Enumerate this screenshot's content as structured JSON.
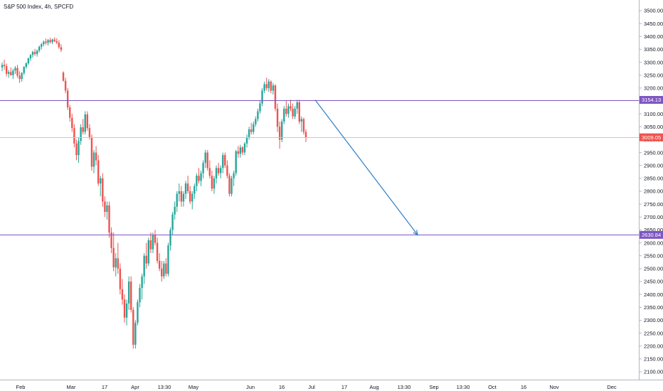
{
  "header": {
    "title": "S&P 500 Index, 4h, SPCFD"
  },
  "colors": {
    "up": "#26a69a",
    "down": "#ef5350",
    "hline": "#7e57c2",
    "price_line": "#f7b7b3",
    "price_tag": "#f0544f",
    "hline_tag": "#7e57c2",
    "arrow": "#2f7ec7",
    "axis_text": "#131722",
    "axis_line": "#b2b5be"
  },
  "chart_data": {
    "type": "candlestick",
    "symbol": "S&P 500 Index",
    "interval": "4h",
    "source": "SPCFD",
    "y_axis": {
      "ticks": [
        3500,
        3450,
        3400,
        3350,
        3300,
        3250,
        3200,
        3150,
        3100,
        3050,
        3000,
        2950,
        2900,
        2850,
        2800,
        2750,
        2700,
        2650,
        2600,
        2550,
        2500,
        2450,
        2400,
        2350,
        2300,
        2250,
        2200,
        2150,
        2100
      ],
      "tick_labels": [
        "3500.00",
        "3450.00",
        "3400.00",
        "3350.00",
        "3300.00",
        "3250.00",
        "3200.00",
        "3150.00",
        "3100.00",
        "3050.00",
        "3000.00",
        "2950.00",
        "2900.00",
        "2850.00",
        "2800.00",
        "2750.00",
        "2700.00",
        "2650.00",
        "2600.00",
        "2550.00",
        "2500.00",
        "2450.00",
        "2400.00",
        "2350.00",
        "2300.00",
        "2250.00",
        "2200.00",
        "2150.00",
        "2100.00"
      ],
      "range": [
        2077,
        3523
      ]
    },
    "x_axis": {
      "tick_labels": [
        "Feb",
        "Mar",
        "17",
        "Apr",
        "13:30",
        "May",
        "Jun",
        "16",
        "Jul",
        "17",
        "Aug",
        "13:30",
        "Sep",
        "13:30",
        "Oct",
        "16",
        "Nov",
        "Dec"
      ]
    },
    "horizontal_lines": [
      {
        "price": 3154.13,
        "label": "3154.13",
        "kind": "level"
      },
      {
        "price": 3009.05,
        "label": "3009.05",
        "kind": "last_price"
      },
      {
        "price": 2630.84,
        "label": "2630.84",
        "kind": "level"
      }
    ],
    "projection_arrow": {
      "from": {
        "date": "2020-06-29",
        "price": 3154
      },
      "to": {
        "date": "2020-08-27",
        "price": 2630.84
      }
    },
    "ohlc": [
      [
        3280,
        3300,
        3265,
        3290
      ],
      [
        3290,
        3310,
        3270,
        3285
      ],
      [
        3285,
        3295,
        3245,
        3255
      ],
      [
        3255,
        3270,
        3240,
        3262
      ],
      [
        3262,
        3280,
        3248,
        3250
      ],
      [
        3250,
        3275,
        3235,
        3268
      ],
      [
        3268,
        3285,
        3255,
        3278
      ],
      [
        3278,
        3290,
        3240,
        3248
      ],
      [
        3248,
        3265,
        3220,
        3235
      ],
      [
        3235,
        3262,
        3225,
        3258
      ],
      [
        3258,
        3285,
        3250,
        3282
      ],
      [
        3282,
        3300,
        3275,
        3296
      ],
      [
        3296,
        3318,
        3290,
        3315
      ],
      [
        3315,
        3332,
        3305,
        3328
      ],
      [
        3328,
        3345,
        3318,
        3340
      ],
      [
        3340,
        3352,
        3325,
        3332
      ],
      [
        3332,
        3350,
        3322,
        3345
      ],
      [
        3345,
        3365,
        3338,
        3360
      ],
      [
        3360,
        3375,
        3350,
        3370
      ],
      [
        3370,
        3385,
        3362,
        3380
      ],
      [
        3380,
        3392,
        3368,
        3375
      ],
      [
        3375,
        3390,
        3365,
        3386
      ],
      [
        3386,
        3395,
        3372,
        3378
      ],
      [
        3378,
        3392,
        3370,
        3388
      ],
      [
        3388,
        3397,
        3378,
        3382
      ],
      [
        3382,
        3393,
        3370,
        3376
      ],
      [
        3376,
        3386,
        3352,
        3358
      ],
      [
        3358,
        3370,
        3340,
        3348
      ],
      [
        3260,
        3265,
        3225,
        3228
      ],
      [
        3228,
        3240,
        3180,
        3190
      ],
      [
        3190,
        3200,
        3115,
        3125
      ],
      [
        3125,
        3135,
        3070,
        3085
      ],
      [
        3085,
        3100,
        3030,
        3045
      ],
      [
        3045,
        3060,
        2970,
        2985
      ],
      [
        2985,
        3000,
        2920,
        2940
      ],
      [
        2940,
        3010,
        2910,
        2995
      ],
      [
        2995,
        3060,
        2980,
        3048
      ],
      [
        3048,
        3080,
        3020,
        3030
      ],
      [
        3030,
        3110,
        3020,
        3098
      ],
      [
        3098,
        3110,
        3035,
        3045
      ],
      [
        3045,
        3060,
        3000,
        3010
      ],
      [
        3010,
        3020,
        2880,
        2895
      ],
      [
        2895,
        2960,
        2870,
        2950
      ],
      [
        2950,
        2975,
        2900,
        2920
      ],
      [
        2920,
        2940,
        2820,
        2830
      ],
      [
        2830,
        2860,
        2780,
        2850
      ],
      [
        2850,
        2870,
        2740,
        2760
      ],
      [
        2760,
        2780,
        2700,
        2720
      ],
      [
        2720,
        2760,
        2690,
        2745
      ],
      [
        2745,
        2760,
        2620,
        2640
      ],
      [
        2640,
        2660,
        2560,
        2580
      ],
      [
        2580,
        2640,
        2490,
        2505
      ],
      [
        2505,
        2560,
        2470,
        2540
      ],
      [
        2540,
        2600,
        2480,
        2500
      ],
      [
        2500,
        2520,
        2400,
        2420
      ],
      [
        2420,
        2460,
        2360,
        2380
      ],
      [
        2380,
        2400,
        2290,
        2310
      ],
      [
        2310,
        2380,
        2280,
        2365
      ],
      [
        2365,
        2470,
        2340,
        2450
      ],
      [
        2450,
        2470,
        2330,
        2340
      ],
      [
        2340,
        2350,
        2190,
        2205
      ],
      [
        2205,
        2300,
        2190,
        2290
      ],
      [
        2290,
        2380,
        2280,
        2370
      ],
      [
        2370,
        2440,
        2350,
        2425
      ],
      [
        2425,
        2480,
        2380,
        2470
      ],
      [
        2470,
        2560,
        2440,
        2550
      ],
      [
        2550,
        2600,
        2500,
        2520
      ],
      [
        2520,
        2620,
        2510,
        2610
      ],
      [
        2610,
        2640,
        2560,
        2575
      ],
      [
        2575,
        2640,
        2560,
        2630
      ],
      [
        2630,
        2650,
        2590,
        2600
      ],
      [
        2600,
        2620,
        2520,
        2530
      ],
      [
        2530,
        2560,
        2490,
        2500
      ],
      [
        2500,
        2530,
        2450,
        2470
      ],
      [
        2470,
        2530,
        2460,
        2520
      ],
      [
        2520,
        2540,
        2470,
        2480
      ],
      [
        2480,
        2600,
        2470,
        2590
      ],
      [
        2590,
        2660,
        2570,
        2650
      ],
      [
        2650,
        2720,
        2630,
        2710
      ],
      [
        2710,
        2760,
        2690,
        2740
      ],
      [
        2740,
        2800,
        2720,
        2790
      ],
      [
        2790,
        2830,
        2760,
        2800
      ],
      [
        2800,
        2820,
        2740,
        2760
      ],
      [
        2760,
        2800,
        2740,
        2790
      ],
      [
        2790,
        2840,
        2770,
        2830
      ],
      [
        2830,
        2860,
        2790,
        2800
      ],
      [
        2800,
        2820,
        2750,
        2760
      ],
      [
        2760,
        2800,
        2730,
        2790
      ],
      [
        2790,
        2830,
        2770,
        2820
      ],
      [
        2820,
        2870,
        2800,
        2860
      ],
      [
        2860,
        2890,
        2830,
        2840
      ],
      [
        2840,
        2880,
        2820,
        2870
      ],
      [
        2870,
        2920,
        2850,
        2910
      ],
      [
        2910,
        2960,
        2890,
        2950
      ],
      [
        2950,
        2960,
        2880,
        2890
      ],
      [
        2890,
        2920,
        2850,
        2860
      ],
      [
        2860,
        2880,
        2800,
        2810
      ],
      [
        2810,
        2860,
        2790,
        2850
      ],
      [
        2850,
        2900,
        2830,
        2890
      ],
      [
        2890,
        2910,
        2860,
        2870
      ],
      [
        2870,
        2900,
        2850,
        2890
      ],
      [
        2890,
        2950,
        2870,
        2940
      ],
      [
        2940,
        2950,
        2890,
        2900
      ],
      [
        2900,
        2920,
        2850,
        2860
      ],
      [
        2860,
        2870,
        2780,
        2790
      ],
      [
        2790,
        2860,
        2780,
        2850
      ],
      [
        2850,
        2880,
        2820,
        2870
      ],
      [
        2870,
        2960,
        2860,
        2955
      ],
      [
        2955,
        2975,
        2930,
        2945
      ],
      [
        2945,
        2980,
        2930,
        2970
      ],
      [
        2970,
        2975,
        2940,
        2950
      ],
      [
        2950,
        2990,
        2940,
        2985
      ],
      [
        2985,
        3020,
        2970,
        3010
      ],
      [
        3010,
        3050,
        3000,
        3040
      ],
      [
        3040,
        3065,
        3020,
        3030
      ],
      [
        3030,
        3070,
        3020,
        3060
      ],
      [
        3060,
        3090,
        3050,
        3080
      ],
      [
        3080,
        3120,
        3070,
        3110
      ],
      [
        3110,
        3150,
        3100,
        3140
      ],
      [
        3140,
        3200,
        3130,
        3190
      ],
      [
        3190,
        3225,
        3180,
        3215
      ],
      [
        3215,
        3240,
        3190,
        3200
      ],
      [
        3200,
        3235,
        3185,
        3225
      ],
      [
        3225,
        3230,
        3180,
        3190
      ],
      [
        3190,
        3220,
        3175,
        3210
      ],
      [
        3210,
        3215,
        3110,
        3120
      ],
      [
        3120,
        3140,
        3030,
        3050
      ],
      [
        3050,
        3070,
        2965,
        3000
      ],
      [
        3000,
        3080,
        2990,
        3070
      ],
      [
        3070,
        3130,
        3060,
        3120
      ],
      [
        3120,
        3150,
        3090,
        3100
      ],
      [
        3100,
        3140,
        3085,
        3130
      ],
      [
        3130,
        3155,
        3110,
        3120
      ],
      [
        3120,
        3140,
        3080,
        3090
      ],
      [
        3090,
        3130,
        3080,
        3120
      ],
      [
        3120,
        3155,
        3100,
        3145
      ],
      [
        3145,
        3155,
        3060,
        3070
      ],
      [
        3070,
        3090,
        3030,
        3080
      ],
      [
        3080,
        3085,
        3020,
        3030
      ],
      [
        3030,
        3040,
        2990,
        3009.05
      ]
    ]
  }
}
